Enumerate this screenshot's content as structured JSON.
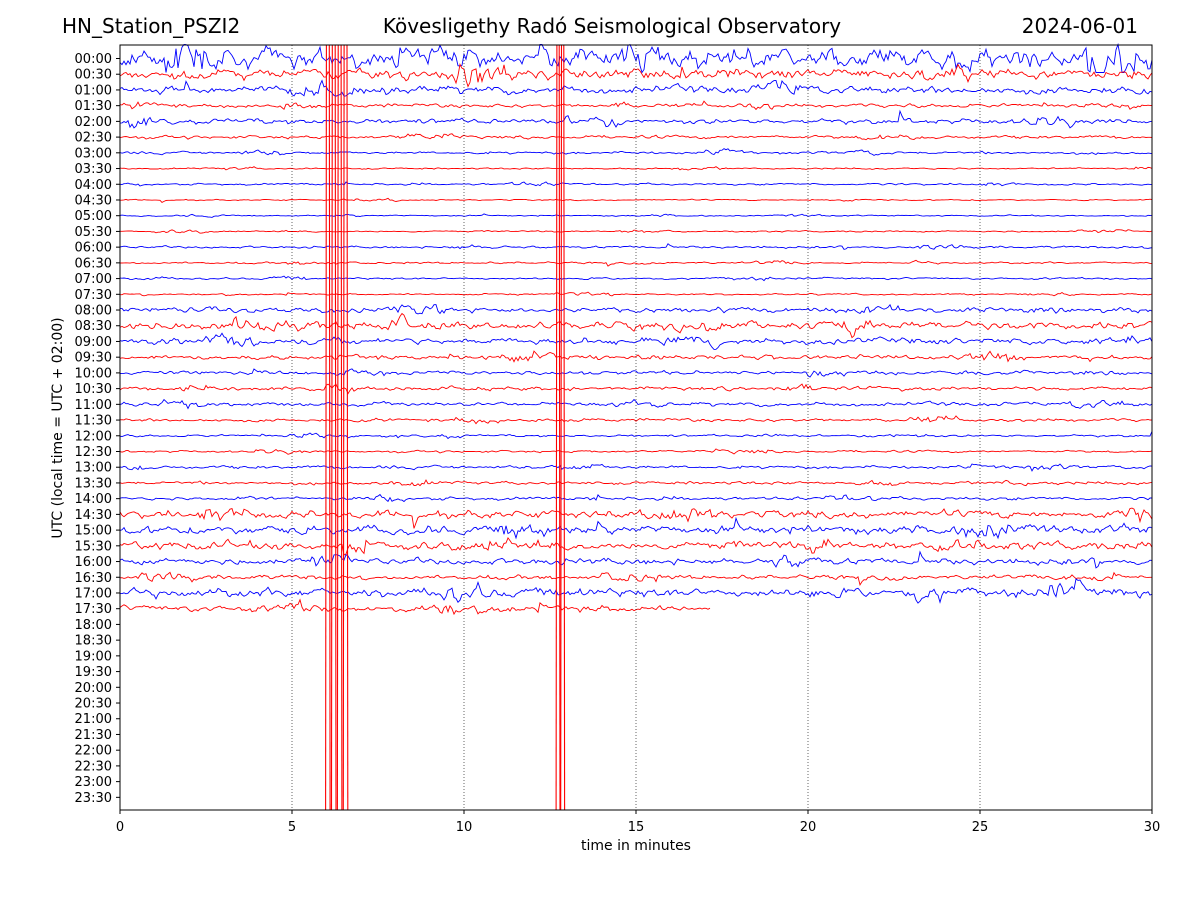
{
  "header": {
    "station": "HN_Station_PSZI2",
    "observatory": "Kövesligethy Radó Seismological Observatory",
    "date": "2024-06-01"
  },
  "chart_data": {
    "type": "line",
    "title": "Kövesligethy Radó Seismological Observatory",
    "xlabel": "time in minutes",
    "ylabel": "UTC (local time = UTC + 02:00)",
    "xlim": [
      0,
      30
    ],
    "x_ticks": [
      "0",
      "5",
      "10",
      "15",
      "20",
      "25",
      "30"
    ],
    "x_tick_values": [
      0,
      5,
      10,
      15,
      20,
      25,
      30
    ],
    "row_labels": [
      "00:00",
      "00:30",
      "01:00",
      "01:30",
      "02:00",
      "02:30",
      "03:00",
      "03:30",
      "04:00",
      "04:30",
      "05:00",
      "05:30",
      "06:00",
      "06:30",
      "07:00",
      "07:30",
      "08:00",
      "08:30",
      "09:00",
      "09:30",
      "10:00",
      "10:30",
      "11:00",
      "11:30",
      "12:00",
      "12:30",
      "13:00",
      "13:30",
      "14:00",
      "14:30",
      "15:00",
      "15:30",
      "16:00",
      "16:30",
      "17:00",
      "17:30",
      "18:00",
      "18:30",
      "19:00",
      "19:30",
      "20:00",
      "20:30",
      "21:00",
      "21:30",
      "22:00",
      "22:30",
      "23:00",
      "23:30"
    ],
    "recorded_rows": 36,
    "trace_colors": [
      "#0000ff",
      "#ff0000"
    ],
    "row_activity": [
      3.0,
      1.6,
      1.2,
      0.6,
      0.8,
      0.5,
      0.4,
      0.25,
      0.3,
      0.2,
      0.2,
      0.25,
      0.35,
      0.3,
      0.3,
      0.25,
      0.8,
      1.2,
      1.0,
      0.7,
      0.6,
      0.6,
      0.6,
      0.5,
      0.35,
      0.35,
      0.5,
      0.5,
      0.5,
      1.2,
      1.3,
      1.3,
      1.0,
      0.7,
      1.4,
      1.0
    ],
    "events": [
      {
        "type": "large_spikes",
        "x_start": 6.0,
        "x_end": 6.6,
        "rows_from": "00:00",
        "rows_to": "23:30"
      },
      {
        "type": "large_spikes",
        "x_start": 12.7,
        "x_end": 12.9,
        "rows_from": "00:00",
        "rows_to": "23:30"
      }
    ],
    "grid": {
      "vertical_dotted_at": [
        5,
        10,
        15,
        20,
        25
      ]
    }
  }
}
